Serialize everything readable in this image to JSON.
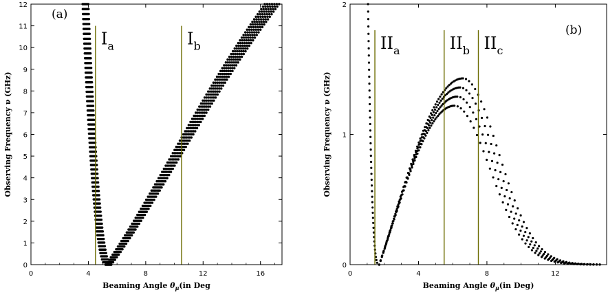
{
  "colors": {
    "curve": "#000000",
    "marker_line": "#6b6b00",
    "axis": "#000000"
  },
  "chart_data": [
    {
      "type": "scatter",
      "panel_label": "(a)",
      "xlabel": "Beaming Angle θ_μ(in Deg)",
      "xlabel_main": "Beaming Angle ",
      "xlabel_theta": "θ",
      "xlabel_sub": "μ",
      "xlabel_tail": "(in Deg",
      "ylabel": "Observing Frequency ν (GHz)",
      "xlim": [
        0,
        17.5
      ],
      "ylim": [
        0,
        12
      ],
      "xticks": [
        "0",
        "4",
        "8",
        "12",
        "16"
      ],
      "xtick_values": [
        0,
        4,
        8,
        12,
        16
      ],
      "yticks": [
        "0",
        "1",
        "2",
        "3",
        "4",
        "5",
        "6",
        "7",
        "8",
        "9",
        "10",
        "11",
        "12"
      ],
      "ytick_values": [
        0,
        1,
        2,
        3,
        4,
        5,
        6,
        7,
        8,
        9,
        10,
        11,
        12
      ],
      "curve_family": {
        "count": 7,
        "theta_min_range": [
          5.2,
          5.6
        ],
        "theta_start": 3.6,
        "theta_end": 17.3,
        "nu_max": 12
      },
      "markers": [
        {
          "x": 4.5,
          "y_top": 11,
          "main": "I",
          "sub": "a"
        },
        {
          "x": 10.5,
          "y_top": 11,
          "main": "I",
          "sub": "b"
        }
      ]
    },
    {
      "type": "scatter",
      "panel_label": "(b)",
      "xlabel": "Beaming Angle θ_μ(in Deg)",
      "xlabel_main": "Beaming Angle ",
      "xlabel_theta": "θ",
      "xlabel_sub": "μ",
      "xlabel_tail": "(in Deg)",
      "ylabel": "Observing Frequency ν (GHz)",
      "xlim": [
        0,
        15
      ],
      "ylim": [
        0,
        2
      ],
      "xticks": [
        "0",
        "4",
        "8",
        "12"
      ],
      "xtick_values": [
        0,
        4,
        8,
        12
      ],
      "yticks": [
        "0",
        "1",
        "2"
      ],
      "ytick_values": [
        0,
        1,
        2
      ],
      "curve_family": {
        "count": 4,
        "theta_min": 1.7,
        "peak_theta": [
          6.1,
          6.6
        ],
        "peak_nu": [
          1.22,
          1.43
        ]
      },
      "markers": [
        {
          "x": 1.45,
          "y_top": 1.8,
          "main": "II",
          "sub": "a"
        },
        {
          "x": 5.5,
          "y_top": 1.8,
          "main": "II",
          "sub": "b"
        },
        {
          "x": 7.5,
          "y_top": 1.8,
          "main": "II",
          "sub": "c"
        }
      ]
    }
  ]
}
